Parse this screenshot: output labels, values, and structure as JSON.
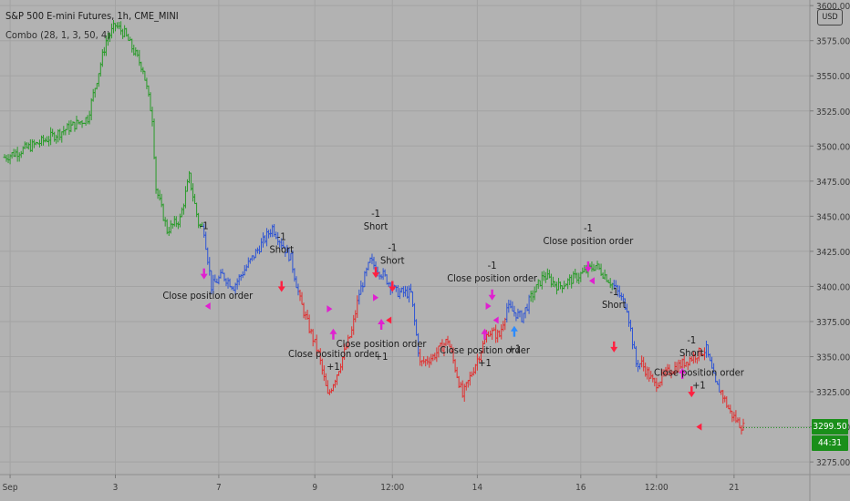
{
  "header": {
    "symbol_title": "S&P 500 E-mini Futures, 1h, CME_MINI",
    "indicator": "Combo (28, 1, 3, 50, 4)",
    "currency_button": "USD"
  },
  "price_tags": {
    "last_price": "3299.50",
    "countdown": "44:31",
    "last_price_color": "#1a8f1a",
    "countdown_color": "#1a8f1a"
  },
  "colors": {
    "background": "#b2b2b2",
    "grid": "#a3a3a3",
    "bull": "#2a9b2a",
    "bear": "#e03030",
    "neutral": "#2f55d4",
    "signal_red": "#ff2040",
    "signal_magenta": "#e020d0",
    "signal_blue": "#2d8cff"
  },
  "chart_data": {
    "type": "candlestick",
    "title": "S&P 500 E-mini Futures, 1h, CME_MINI",
    "y_axis": {
      "ticks": [
        "3600.00",
        "3575.00",
        "3550.00",
        "3525.00",
        "3500.00",
        "3475.00",
        "3450.00",
        "3425.00",
        "3400.00",
        "3375.00",
        "3350.00",
        "3325.00",
        "3300.00",
        "3275.00"
      ],
      "range": [
        3266,
        3604
      ]
    },
    "x_axis": {
      "ticks": [
        "Sep",
        "3",
        "7",
        "9",
        "12:00",
        "14",
        "16",
        "12:00",
        "21"
      ],
      "bar_range": [
        0,
        400
      ],
      "tick_bars": [
        3,
        60,
        116,
        168,
        210,
        256,
        312,
        353,
        395
      ]
    },
    "price_path": [
      [
        0,
        3492,
        "g"
      ],
      [
        20,
        3503,
        "g"
      ],
      [
        45,
        3520,
        "g"
      ],
      [
        55,
        3575,
        "g"
      ],
      [
        60,
        3586,
        "g"
      ],
      [
        65,
        3580,
        "g"
      ],
      [
        75,
        3555,
        "g"
      ],
      [
        80,
        3520,
        "g"
      ],
      [
        82,
        3470,
        "g"
      ],
      [
        88,
        3440,
        "g"
      ],
      [
        95,
        3448,
        "g"
      ],
      [
        100,
        3478,
        "g"
      ],
      [
        105,
        3445,
        "g"
      ],
      [
        108,
        3440,
        "b"
      ],
      [
        112,
        3400,
        "b"
      ],
      [
        118,
        3408,
        "b"
      ],
      [
        124,
        3400,
        "b"
      ],
      [
        135,
        3422,
        "b"
      ],
      [
        145,
        3442,
        "b"
      ],
      [
        155,
        3420,
        "b"
      ],
      [
        160,
        3390,
        "r"
      ],
      [
        165,
        3370,
        "r"
      ],
      [
        170,
        3352,
        "r"
      ],
      [
        175,
        3322,
        "r"
      ],
      [
        180,
        3338,
        "r"
      ],
      [
        188,
        3368,
        "r"
      ],
      [
        192,
        3395,
        "b"
      ],
      [
        198,
        3418,
        "b"
      ],
      [
        205,
        3408,
        "b"
      ],
      [
        212,
        3396,
        "b"
      ],
      [
        220,
        3395,
        "b"
      ],
      [
        225,
        3345,
        "r"
      ],
      [
        232,
        3350,
        "r"
      ],
      [
        240,
        3362,
        "r"
      ],
      [
        248,
        3322,
        "r"
      ],
      [
        255,
        3345,
        "r"
      ],
      [
        262,
        3368,
        "r"
      ],
      [
        268,
        3365,
        "r"
      ],
      [
        272,
        3385,
        "b"
      ],
      [
        280,
        3378,
        "b"
      ],
      [
        285,
        3392,
        "g"
      ],
      [
        292,
        3408,
        "g"
      ],
      [
        300,
        3400,
        "g"
      ],
      [
        310,
        3407,
        "g"
      ],
      [
        320,
        3415,
        "g"
      ],
      [
        325,
        3408,
        "g"
      ],
      [
        330,
        3400,
        "b"
      ],
      [
        337,
        3385,
        "b"
      ],
      [
        342,
        3345,
        "b"
      ],
      [
        345,
        3345,
        "r"
      ],
      [
        352,
        3330,
        "r"
      ],
      [
        360,
        3340,
        "r"
      ],
      [
        367,
        3345,
        "r"
      ],
      [
        375,
        3352,
        "r"
      ],
      [
        380,
        3355,
        "b"
      ],
      [
        385,
        3330,
        "b"
      ],
      [
        388,
        3325,
        "r"
      ],
      [
        393,
        3310,
        "r"
      ],
      [
        398,
        3302,
        "r"
      ],
      [
        400,
        3300,
        "r"
      ]
    ],
    "markers": [
      {
        "bar": 108,
        "price": 3407,
        "type": "down",
        "color": "magenta",
        "labels": [
          "-1"
        ],
        "label_anchor": "above",
        "label_offset": 52
      },
      {
        "bar": 110,
        "price": 3386,
        "type": "left",
        "color": "magenta",
        "labels": [
          "Close position order"
        ],
        "label_anchor": "above",
        "label_offset": 8
      },
      {
        "bar": 150,
        "price": 3398,
        "type": "down",
        "color": "red",
        "labels": [
          "-1",
          "Short"
        ],
        "label_anchor": "above",
        "label_offset": 40
      },
      {
        "bar": 176,
        "price": 3384,
        "type": "right",
        "color": "magenta",
        "labels": [],
        "label_anchor": "above",
        "label_offset": 0
      },
      {
        "bar": 178,
        "price": 3368,
        "type": "up",
        "color": "magenta",
        "labels": [
          "Close position order",
          "+1"
        ],
        "label_anchor": "below",
        "label_offset": 28
      },
      {
        "bar": 201,
        "price": 3408,
        "type": "down",
        "color": "red",
        "labels": [
          "-1",
          "Short"
        ],
        "label_anchor": "above",
        "label_offset": 50
      },
      {
        "bar": 204,
        "price": 3375,
        "type": "up",
        "color": "magenta",
        "labels": [
          "Close position order",
          "+1"
        ],
        "label_anchor": "below",
        "label_offset": 28
      },
      {
        "bar": 201,
        "price": 3392,
        "type": "right",
        "color": "magenta",
        "labels": [],
        "label_anchor": "above",
        "label_offset": 0
      },
      {
        "bar": 210,
        "price": 3398,
        "type": "down",
        "color": "red",
        "labels": [
          "-1",
          "Short"
        ],
        "label_anchor": "above",
        "label_offset": 28
      },
      {
        "bar": 208,
        "price": 3376,
        "type": "left",
        "color": "red",
        "labels": [],
        "label_anchor": "above",
        "label_offset": 0
      },
      {
        "bar": 262,
        "price": 3386,
        "type": "right",
        "color": "magenta",
        "labels": [],
        "label_anchor": "above",
        "label_offset": 0
      },
      {
        "bar": 260,
        "price": 3368,
        "type": "up",
        "color": "magenta",
        "labels": [
          "Close position order",
          "+1"
        ],
        "label_anchor": "below",
        "label_offset": 24
      },
      {
        "bar": 264,
        "price": 3392,
        "type": "down",
        "color": "magenta",
        "labels": [
          "-1",
          "Close position order"
        ],
        "label_anchor": "above",
        "label_offset": 18
      },
      {
        "bar": 266,
        "price": 3376,
        "type": "left",
        "color": "magenta",
        "labels": [],
        "label_anchor": "above",
        "label_offset": 0
      },
      {
        "bar": 276,
        "price": 3370,
        "type": "up",
        "color": "blue",
        "labels": [
          "+1"
        ],
        "label_anchor": "below",
        "label_offset": 26
      },
      {
        "bar": 316,
        "price": 3412,
        "type": "down",
        "color": "magenta",
        "labels": [
          "-1",
          "Close position order"
        ],
        "label_anchor": "above",
        "label_offset": 28
      },
      {
        "bar": 318,
        "price": 3404,
        "type": "left",
        "color": "magenta",
        "labels": [],
        "label_anchor": "above",
        "label_offset": 0
      },
      {
        "bar": 330,
        "price": 3355,
        "type": "down",
        "color": "red",
        "labels": [
          "-1",
          "Short"
        ],
        "label_anchor": "above",
        "label_offset": 46
      },
      {
        "bar": 367,
        "price": 3340,
        "type": "up",
        "color": "magenta",
        "labels": [],
        "label_anchor": "below",
        "label_offset": 0
      },
      {
        "bar": 372,
        "price": 3323,
        "type": "down",
        "color": "red",
        "labels": [
          "-1",
          "Short"
        ],
        "label_anchor": "above",
        "label_offset": 42
      },
      {
        "bar": 376,
        "price": 3300,
        "type": "left",
        "color": "red",
        "labels": [
          "Close position order",
          "+1"
        ],
        "label_anchor": "above",
        "label_offset": 42
      }
    ]
  }
}
